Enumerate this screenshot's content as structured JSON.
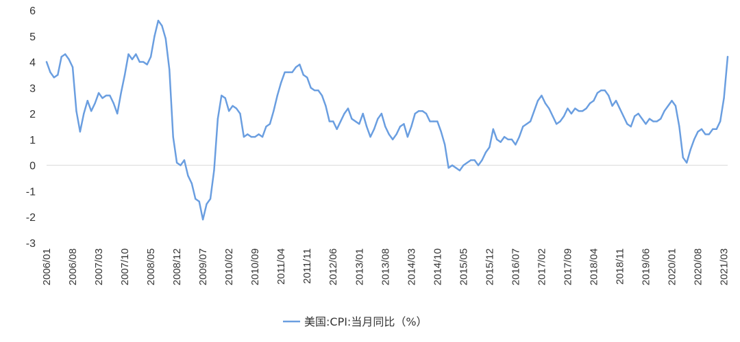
{
  "chart_data": {
    "type": "line",
    "title": "",
    "xlabel": "",
    "ylabel": "",
    "ylim": [
      -3,
      6
    ],
    "yticks": [
      "6",
      "5",
      "4",
      "3",
      "2",
      "1",
      "0",
      "-1",
      "-2",
      "-3"
    ],
    "grid": false,
    "legend_position": "bottom",
    "x_start": "2006/01",
    "x_frequency": "monthly",
    "x_tick_labels": [
      "2006/01",
      "2006/08",
      "2007/03",
      "2007/10",
      "2008/05",
      "2008/12",
      "2009/07",
      "2010/02",
      "2010/09",
      "2011/04",
      "2011/11",
      "2012/06",
      "2013/01",
      "2013/08",
      "2014/03",
      "2014/10",
      "2015/05",
      "2015/12",
      "2016/07",
      "2017/02",
      "2017/09",
      "2018/04",
      "2018/11",
      "2019/06",
      "2020/01",
      "2020/08",
      "2021/03"
    ],
    "series": [
      {
        "name": "美国:CPI:当月同比（%）",
        "color": "#6a9ee0",
        "values": [
          4.0,
          3.6,
          3.4,
          3.5,
          4.2,
          4.3,
          4.1,
          3.8,
          2.1,
          1.3,
          2.0,
          2.5,
          2.1,
          2.4,
          2.8,
          2.6,
          2.7,
          2.7,
          2.4,
          2.0,
          2.8,
          3.5,
          4.3,
          4.1,
          4.3,
          4.0,
          4.0,
          3.9,
          4.2,
          5.0,
          5.6,
          5.4,
          4.9,
          3.7,
          1.1,
          0.1,
          0.0,
          0.2,
          -0.4,
          -0.7,
          -1.3,
          -1.4,
          -2.1,
          -1.5,
          -1.3,
          -0.2,
          1.8,
          2.7,
          2.6,
          2.1,
          2.3,
          2.2,
          2.0,
          1.1,
          1.2,
          1.1,
          1.1,
          1.2,
          1.1,
          1.5,
          1.6,
          2.1,
          2.7,
          3.2,
          3.6,
          3.6,
          3.6,
          3.8,
          3.9,
          3.5,
          3.4,
          3.0,
          2.9,
          2.9,
          2.7,
          2.3,
          1.7,
          1.7,
          1.4,
          1.7,
          2.0,
          2.2,
          1.8,
          1.7,
          1.6,
          2.0,
          1.5,
          1.1,
          1.4,
          1.8,
          2.0,
          1.5,
          1.2,
          1.0,
          1.2,
          1.5,
          1.6,
          1.1,
          1.5,
          2.0,
          2.1,
          2.1,
          2.0,
          1.7,
          1.7,
          1.7,
          1.3,
          0.8,
          -0.1,
          0.0,
          -0.1,
          -0.2,
          0.0,
          0.1,
          0.2,
          0.2,
          0.0,
          0.2,
          0.5,
          0.7,
          1.4,
          1.0,
          0.9,
          1.1,
          1.0,
          1.0,
          0.8,
          1.1,
          1.5,
          1.6,
          1.7,
          2.1,
          2.5,
          2.7,
          2.4,
          2.2,
          1.9,
          1.6,
          1.7,
          1.9,
          2.2,
          2.0,
          2.2,
          2.1,
          2.1,
          2.2,
          2.4,
          2.5,
          2.8,
          2.9,
          2.9,
          2.7,
          2.3,
          2.5,
          2.2,
          1.9,
          1.6,
          1.5,
          1.9,
          2.0,
          1.8,
          1.6,
          1.8,
          1.7,
          1.7,
          1.8,
          2.1,
          2.3,
          2.5,
          2.3,
          1.5,
          0.3,
          0.1,
          0.6,
          1.0,
          1.3,
          1.4,
          1.2,
          1.2,
          1.4,
          1.4,
          1.7,
          2.6,
          4.2
        ]
      }
    ]
  }
}
